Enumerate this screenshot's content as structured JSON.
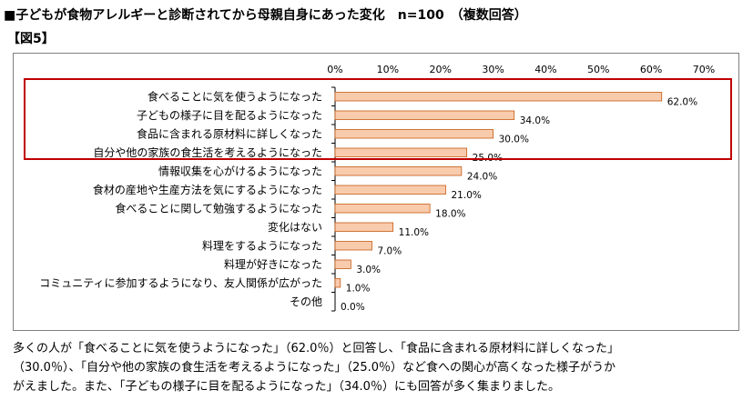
{
  "header": {
    "title": "■子どもが食物アレルギーと診断されてから母親自身にあった変化　n=100　（複数回答）",
    "figure_label": "【図5】"
  },
  "chart_data": {
    "type": "bar",
    "orientation": "horizontal",
    "categories": [
      "食べることに気を使うようになった",
      "子どもの様子に目を配るようになった",
      "食品に含まれる原材料に詳しくなった",
      "自分や他の家族の食生活を考えるようになった",
      "情報収集を心がけるようになった",
      "食材の産地や生産方法を気にするようになった",
      "食べることに関して勉強するようになった",
      "変化はない",
      "料理をするようになった",
      "料理が好きになった",
      "コミュニティに参加するようになり、友人関係が広がった",
      "その他"
    ],
    "values": [
      62.0,
      34.0,
      30.0,
      25.0,
      24.0,
      21.0,
      18.0,
      11.0,
      7.0,
      3.0,
      1.0,
      0.0
    ],
    "value_labels": [
      "62.0%",
      "34.0%",
      "30.0%",
      "25.0%",
      "24.0%",
      "21.0%",
      "18.0%",
      "11.0%",
      "7.0%",
      "3.0%",
      "1.0%",
      "0.0%"
    ],
    "xlim": [
      0,
      70
    ],
    "ticks": [
      "0%",
      "10%",
      "20%",
      "30%",
      "40%",
      "50%",
      "60%",
      "70%"
    ],
    "tick_values": [
      0,
      10,
      20,
      30,
      40,
      50,
      60,
      70
    ],
    "highlighted_categories": 4,
    "axis_position": "top",
    "grid": false,
    "colors": {
      "bar_fill": "#f8cbad",
      "bar_stroke": "#c55a11",
      "highlight_border": "#c00000",
      "axis": "#000000"
    }
  },
  "description": [
    "多くの人が「食べることに気を使うようになった」（62.0％）と回答し、「食品に含まれる原材料に詳しくなった」",
    "（30.0％）、「自分や他の家族の食生活を考えるようになった」（25.0％）など食への関心が高くなった様子がうか",
    "がえました。また、「子どもの様子に目を配るようになった」（34.0％）にも回答が多く集まりました。"
  ]
}
